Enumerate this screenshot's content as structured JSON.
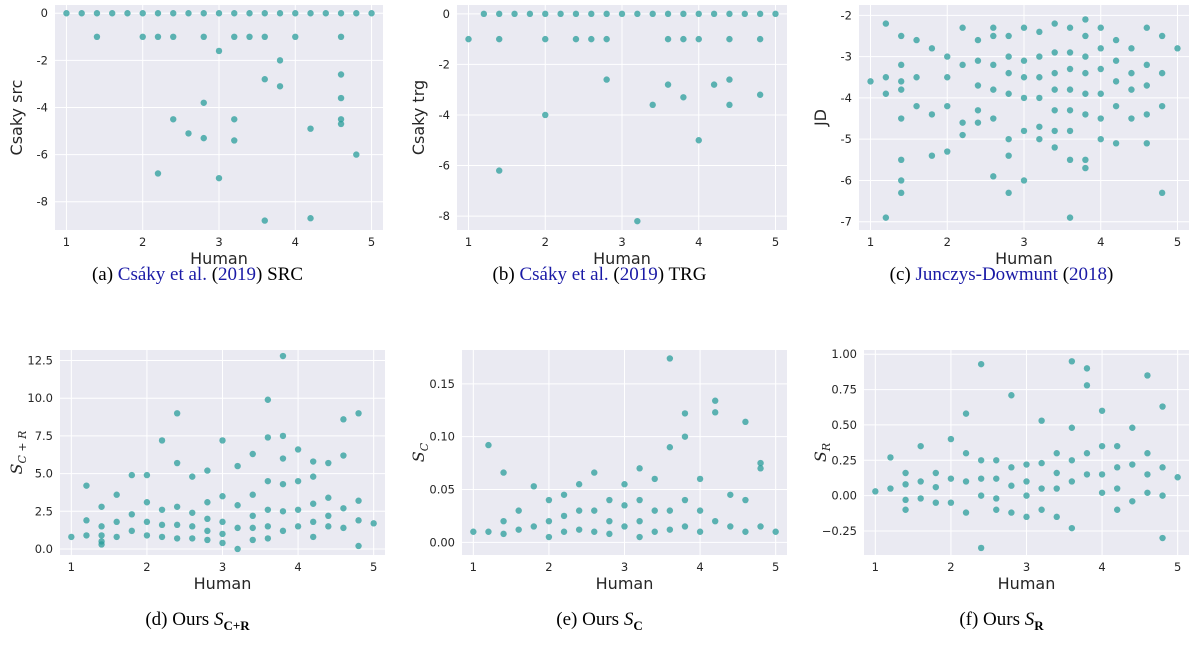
{
  "figure": {
    "colors": {
      "point": "#2a9d9b",
      "plot_bg": "#eaeaf2",
      "grid": "#ffffff"
    }
  },
  "chart_data": [
    {
      "type": "scatter",
      "caption": {
        "prefix": "(a) ",
        "cite_author": "Csáky et al.",
        "cite_open": " (",
        "cite_year": "2019",
        "cite_close": ")",
        "suffix": " SRC"
      },
      "xlabel": "Human",
      "ylabel": "Csaky src",
      "xlim": [
        0.85,
        5.15
      ],
      "ylim": [
        -9.2,
        0.35
      ],
      "xticks": [
        1,
        2,
        3,
        4,
        5
      ],
      "yticks": [
        0,
        -2,
        -4,
        -6,
        -8
      ],
      "x": [
        1,
        1.2,
        1.4,
        1.6,
        1.8,
        2,
        2.2,
        2.4,
        2.6,
        2.8,
        3,
        3.2,
        3.4,
        3.6,
        3.8,
        4,
        4.2,
        4.4,
        4.6,
        4.8,
        5,
        1.4,
        2,
        2.2,
        2.4,
        2.8,
        3.2,
        3.4,
        3.6,
        4,
        4.6,
        3,
        3.8,
        4.6,
        3.6,
        3.8,
        4.6,
        2.8,
        4.6,
        2.4,
        3.2,
        2.6,
        2.8,
        3.2,
        4.2,
        4.6,
        4.8,
        2.2,
        3,
        3.6,
        4.2
      ],
      "y": [
        0,
        0,
        0,
        0,
        0,
        0,
        0,
        0,
        0,
        0,
        0,
        0,
        0,
        0,
        0,
        0,
        0,
        0,
        0,
        0,
        0,
        -1,
        -1,
        -1,
        -1,
        -1,
        -1,
        -1,
        -1,
        -1,
        -1,
        -1.6,
        -2,
        -2.6,
        -2.8,
        -3.1,
        -3.6,
        -3.8,
        -4.5,
        -4.5,
        -4.5,
        -5.1,
        -5.3,
        -5.4,
        -4.9,
        -4.7,
        -6,
        -6.8,
        -7,
        -8.8,
        -8.7
      ]
    },
    {
      "type": "scatter",
      "caption": {
        "prefix": "(b) ",
        "cite_author": "Csáky et al.",
        "cite_open": " (",
        "cite_year": "2019",
        "cite_close": ")",
        "suffix": " TRG"
      },
      "xlabel": "Human",
      "ylabel": "Csaky trg",
      "xlim": [
        0.85,
        5.15
      ],
      "ylim": [
        -8.55,
        0.35
      ],
      "xticks": [
        1,
        2,
        3,
        4,
        5
      ],
      "yticks": [
        0,
        -2,
        -4,
        -6,
        -8
      ],
      "x": [
        1.2,
        1.4,
        1.6,
        1.8,
        2,
        2.2,
        2.4,
        2.6,
        2.8,
        3,
        3.2,
        3.4,
        3.6,
        3.8,
        4,
        4.2,
        4.4,
        4.6,
        4.8,
        5,
        1,
        1.4,
        2,
        2.4,
        2.6,
        2.8,
        3.6,
        3.8,
        4,
        4.4,
        4.8,
        2.8,
        3.6,
        3.8,
        4.2,
        4.4,
        3.4,
        4.4,
        4.8,
        2,
        4,
        1.4,
        3.2
      ],
      "y": [
        0,
        0,
        0,
        0,
        0,
        0,
        0,
        0,
        0,
        0,
        0,
        0,
        0,
        0,
        0,
        0,
        0,
        0,
        0,
        0,
        -1,
        -1,
        -1,
        -1,
        -1,
        -1,
        -1,
        -1,
        -1,
        -1,
        -1,
        -2.6,
        -2.8,
        -3.3,
        -2.8,
        -2.6,
        -3.6,
        -3.6,
        -3.2,
        -4,
        -5,
        -6.2,
        -8.2
      ]
    },
    {
      "type": "scatter",
      "caption": {
        "prefix": "(c) ",
        "cite_author": "Junczys-Dowmunt",
        "cite_open": " (",
        "cite_year": "2018",
        "cite_close": ")",
        "suffix": ""
      },
      "xlabel": "Human",
      "ylabel": "JD",
      "xlim": [
        0.85,
        5.15
      ],
      "ylim": [
        -7.2,
        -1.75
      ],
      "xticks": [
        1,
        2,
        3,
        4,
        5
      ],
      "yticks": [
        -2,
        -3,
        -4,
        -5,
        -6,
        -7
      ],
      "x": [
        1,
        1.2,
        1.2,
        1.2,
        1.4,
        1.4,
        1.4,
        1.4,
        1.4,
        1.4,
        1.6,
        1.6,
        1.6,
        1.8,
        1.8,
        1.8,
        2,
        2,
        2,
        2,
        2.2,
        2.2,
        2.2,
        2.2,
        2.4,
        2.4,
        2.4,
        2.4,
        2.4,
        2.6,
        2.6,
        2.6,
        2.6,
        2.6,
        2.8,
        2.8,
        2.8,
        2.8,
        2.8,
        2.8,
        3,
        3,
        3,
        3,
        3,
        3,
        3.2,
        3.2,
        3.2,
        3.2,
        3.2,
        3.2,
        3.4,
        3.4,
        3.4,
        3.4,
        3.4,
        3.4,
        3.4,
        3.6,
        3.6,
        3.6,
        3.6,
        3.6,
        3.6,
        3.6,
        3.8,
        3.8,
        3.8,
        3.8,
        3.8,
        3.8,
        3.8,
        4,
        4,
        4,
        4,
        4,
        4,
        4.2,
        4.2,
        4.2,
        4.2,
        4.2,
        4.4,
        4.4,
        4.4,
        4.4,
        4.6,
        4.6,
        4.6,
        4.6,
        4.6,
        4.8,
        4.8,
        4.8,
        4.8,
        5,
        1.2,
        1.4,
        1.4,
        2.6,
        2.8,
        3.6,
        3.8
      ],
      "y": [
        -3.6,
        -2.2,
        -3.9,
        -6.9,
        -2.5,
        -3.2,
        -3.8,
        -5.5,
        -6,
        -6.3,
        -2.6,
        -3.5,
        -4.2,
        -2.8,
        -4.4,
        -5.4,
        -3,
        -3.5,
        -4.2,
        -5.3,
        -2.3,
        -3.2,
        -4.6,
        -4.9,
        -2.6,
        -3.1,
        -3.7,
        -4.3,
        -4.6,
        -2.3,
        -3.2,
        -3.8,
        -4.5,
        -5.9,
        -2.5,
        -3,
        -3.4,
        -3.9,
        -5.4,
        -6.3,
        -2.3,
        -3.1,
        -3.5,
        -4,
        -4.8,
        -6,
        -2.4,
        -3,
        -3.5,
        -4,
        -4.7,
        -5,
        -2.2,
        -2.9,
        -3.4,
        -3.8,
        -4.3,
        -4.8,
        -5.2,
        -2.3,
        -2.9,
        -3.3,
        -3.8,
        -4.3,
        -4.8,
        -6.9,
        -2.1,
        -2.5,
        -3,
        -3.4,
        -3.9,
        -4.4,
        -5.7,
        -2.3,
        -2.8,
        -3.3,
        -3.9,
        -4.5,
        -5,
        -2.6,
        -3.1,
        -3.6,
        -4.2,
        -5.1,
        -2.8,
        -3.4,
        -3.8,
        -4.5,
        -2.3,
        -3.2,
        -3.7,
        -4.4,
        -5.1,
        -2.5,
        -3.4,
        -4.2,
        -6.3,
        -2.8,
        -3.5,
        -3.6,
        -4.5,
        -2.5,
        -5,
        -5.5,
        -5.5
      ],
      "grid": true
    },
    {
      "type": "scatter",
      "caption": {
        "prefix": "(d)   Ours ",
        "math_main": "S",
        "math_sub": "C+R"
      },
      "xlabel": "Human",
      "ylabel_main": "S",
      "ylabel_sub": "C + R",
      "xlim": [
        0.85,
        5.15
      ],
      "ylim": [
        -0.4,
        13.2
      ],
      "xticks": [
        1,
        2,
        3,
        4,
        5
      ],
      "yticks": [
        "0.0",
        "2.5",
        "5.0",
        "7.5",
        "10.0",
        "12.5"
      ],
      "x": [
        1,
        1.2,
        1.2,
        1.2,
        1.4,
        1.4,
        1.4,
        1.4,
        1.4,
        1.6,
        1.6,
        1.6,
        1.8,
        1.8,
        1.8,
        2,
        2,
        2,
        2,
        2.2,
        2.2,
        2.2,
        2.2,
        2.4,
        2.4,
        2.4,
        2.4,
        2.4,
        2.6,
        2.6,
        2.6,
        2.6,
        2.8,
        2.8,
        2.8,
        2.8,
        2.8,
        3,
        3,
        3,
        3,
        3,
        3.2,
        3.2,
        3.2,
        3.2,
        3.4,
        3.4,
        3.4,
        3.4,
        3.4,
        3.6,
        3.6,
        3.6,
        3.6,
        3.6,
        3.6,
        3.8,
        3.8,
        3.8,
        3.8,
        3.8,
        3.8,
        4,
        4,
        4,
        4,
        4.2,
        4.2,
        4.2,
        4.2,
        4.2,
        4.4,
        4.4,
        4.4,
        4.4,
        4.6,
        4.6,
        4.6,
        4.6,
        4.8,
        4.8,
        4.8,
        4.8,
        5
      ],
      "y": [
        0.8,
        4.2,
        1.9,
        0.9,
        2.8,
        1.5,
        0.9,
        0.5,
        0.3,
        3.6,
        1.8,
        0.8,
        4.9,
        2.3,
        1.2,
        4.9,
        3.1,
        1.8,
        0.9,
        7.2,
        2.6,
        1.6,
        0.8,
        9,
        5.7,
        2.8,
        1.6,
        0.7,
        4.8,
        2.4,
        1.5,
        0.7,
        5.2,
        3.1,
        2,
        1.2,
        0.6,
        7.2,
        3.5,
        1.8,
        1,
        0.4,
        5.5,
        2.9,
        1.4,
        0,
        6.3,
        3.6,
        2.2,
        1.4,
        0.6,
        9.9,
        7.4,
        4.5,
        2.6,
        1.5,
        0.7,
        12.8,
        7.5,
        6,
        4.3,
        2.5,
        1.2,
        6.6,
        4.5,
        2.6,
        1.5,
        5.8,
        4.8,
        3,
        1.8,
        0.8,
        5.7,
        3.4,
        2.2,
        1.5,
        8.6,
        6.2,
        2.7,
        1.4,
        9,
        3.2,
        1.9,
        0.2,
        1.7
      ]
    },
    {
      "type": "scatter",
      "caption": {
        "prefix": "(e)   Ours ",
        "math_main": "S",
        "math_sub": "C"
      },
      "xlabel": "Human",
      "ylabel_main": "S",
      "ylabel_sub": "C",
      "xlim": [
        0.85,
        5.15
      ],
      "ylim": [
        -0.012,
        0.182
      ],
      "xticks": [
        1,
        2,
        3,
        4,
        5
      ],
      "yticks": [
        "0.00",
        "0.05",
        "0.10",
        "0.15"
      ],
      "x": [
        1,
        1.2,
        1.2,
        1.4,
        1.4,
        1.4,
        1.6,
        1.6,
        1.8,
        1.8,
        2,
        2,
        2,
        2.2,
        2.2,
        2.2,
        2.4,
        2.4,
        2.4,
        2.6,
        2.6,
        2.6,
        2.8,
        2.8,
        2.8,
        3,
        3,
        3,
        3.2,
        3.2,
        3.2,
        3.2,
        3.4,
        3.4,
        3.4,
        3.6,
        3.6,
        3.6,
        3.6,
        3.8,
        3.8,
        3.8,
        3.8,
        4,
        4,
        4,
        4.2,
        4.2,
        4.2,
        4.4,
        4.4,
        4.6,
        4.6,
        4.6,
        4.8,
        4.8,
        4.8,
        5
      ],
      "y": [
        0.01,
        0.092,
        0.01,
        0.066,
        0.02,
        0.008,
        0.03,
        0.012,
        0.053,
        0.015,
        0.04,
        0.02,
        0.005,
        0.045,
        0.025,
        0.01,
        0.055,
        0.03,
        0.012,
        0.066,
        0.03,
        0.01,
        0.04,
        0.02,
        0.008,
        0.055,
        0.035,
        0.015,
        0.07,
        0.04,
        0.02,
        0.005,
        0.06,
        0.03,
        0.01,
        0.174,
        0.09,
        0.03,
        0.012,
        0.122,
        0.1,
        0.04,
        0.015,
        0.06,
        0.03,
        0.01,
        0.134,
        0.123,
        0.02,
        0.045,
        0.015,
        0.114,
        0.04,
        0.01,
        0.075,
        0.07,
        0.015,
        0.01
      ]
    },
    {
      "type": "scatter",
      "caption": {
        "prefix": "(f)   Ours ",
        "math_main": "S",
        "math_sub": "R"
      },
      "xlabel": "Human",
      "ylabel_main": "S",
      "ylabel_sub": "R",
      "xlim": [
        0.85,
        5.15
      ],
      "ylim": [
        -0.42,
        1.03
      ],
      "xticks": [
        1,
        2,
        3,
        4,
        5
      ],
      "yticks": [
        "−0.25",
        "0.00",
        "0.25",
        "0.50",
        "0.75",
        "1.00"
      ],
      "x": [
        1,
        1.2,
        1.2,
        1.4,
        1.4,
        1.4,
        1.4,
        1.6,
        1.6,
        1.6,
        1.8,
        1.8,
        1.8,
        2,
        2,
        2,
        2.2,
        2.2,
        2.2,
        2.2,
        2.4,
        2.4,
        2.4,
        2.4,
        2.4,
        2.6,
        2.6,
        2.6,
        2.6,
        2.8,
        2.8,
        2.8,
        2.8,
        3,
        3,
        3,
        3,
        3.2,
        3.2,
        3.2,
        3.2,
        3.4,
        3.4,
        3.4,
        3.4,
        3.6,
        3.6,
        3.6,
        3.6,
        3.6,
        3.8,
        3.8,
        3.8,
        3.8,
        4,
        4,
        4,
        4,
        4.2,
        4.2,
        4.2,
        4.2,
        4.4,
        4.4,
        4.4,
        4.6,
        4.6,
        4.6,
        4.6,
        4.8,
        4.8,
        4.8,
        4.8,
        5
      ],
      "y": [
        0.03,
        0.27,
        0.05,
        0.16,
        0.08,
        -0.03,
        -0.1,
        0.35,
        0.1,
        -0.02,
        0.16,
        0.06,
        -0.05,
        0.4,
        0.12,
        -0.05,
        0.58,
        0.3,
        0.1,
        -0.12,
        0.93,
        0.25,
        0.12,
        0,
        -0.37,
        0.25,
        0.12,
        -0.02,
        -0.1,
        0.71,
        0.2,
        0.07,
        -0.12,
        0.22,
        0.1,
        0,
        -0.15,
        0.53,
        0.23,
        0.05,
        -0.1,
        0.3,
        0.16,
        0.05,
        -0.15,
        0.95,
        0.48,
        0.25,
        0.1,
        -0.23,
        0.9,
        0.78,
        0.3,
        0.15,
        0.6,
        0.35,
        0.15,
        0.02,
        0.35,
        0.2,
        0.05,
        -0.1,
        0.48,
        0.22,
        -0.04,
        0.85,
        0.3,
        0.15,
        0.02,
        0.63,
        0.2,
        0,
        -0.3,
        0.13
      ]
    }
  ]
}
